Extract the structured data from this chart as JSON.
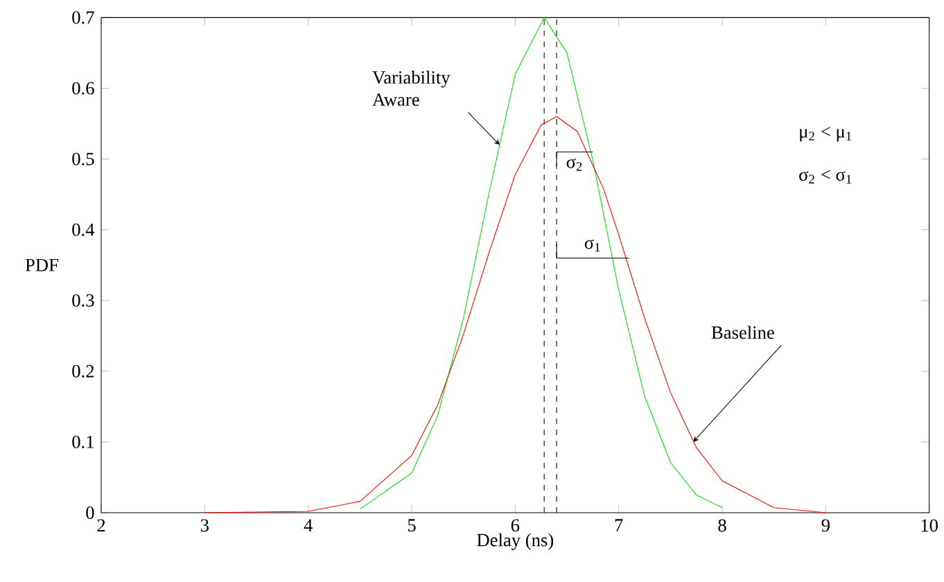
{
  "chart_data": {
    "type": "line",
    "xlabel": "Delay (ns)",
    "ylabel": "PDF",
    "xlim": [
      2,
      10
    ],
    "ylim": [
      0,
      0.7
    ],
    "xticks": [
      2,
      3,
      4,
      5,
      6,
      7,
      8,
      9,
      10
    ],
    "yticks": [
      0,
      0.1,
      0.2,
      0.3,
      0.4,
      0.5,
      0.6,
      0.7
    ],
    "grid": false,
    "marker": "none",
    "line_style": "solid",
    "series": [
      {
        "color": "#00e000",
        "x": [
          4.5,
          5,
          5.25,
          5.5,
          5.75,
          6,
          6.28,
          6.5,
          6.75,
          7,
          7.25,
          7.5,
          7.75,
          8
        ],
        "values": [
          0.005,
          0.056,
          0.137,
          0.275,
          0.454,
          0.62,
          0.7,
          0.65,
          0.498,
          0.315,
          0.165,
          0.071,
          0.025,
          0.007
        ]
      },
      {
        "color": "#ff0000",
        "x": [
          3,
          4,
          4.5,
          5,
          5.25,
          5.5,
          5.75,
          6,
          6.25,
          6.4,
          6.6,
          6.85,
          7,
          7.25,
          7.5,
          7.75,
          8,
          8.5,
          9
        ],
        "values": [
          0,
          0.002,
          0.016,
          0.081,
          0.152,
          0.252,
          0.369,
          0.478,
          0.548,
          0.56,
          0.539,
          0.459,
          0.393,
          0.275,
          0.17,
          0.092,
          0.045,
          0.007,
          0
        ]
      }
    ],
    "ref_lines": [
      {
        "axis": "x",
        "value": 6.28,
        "line_style": "dashed",
        "color": "#000000"
      },
      {
        "axis": "x",
        "value": 6.4,
        "line_style": "dashed",
        "color": "#000000"
      }
    ],
    "annotations": [
      {
        "text": "Variability Aware",
        "x": 5.85,
        "y": 0.52
      },
      {
        "text": "Baseline",
        "x": 7.72,
        "y": 0.1
      },
      {
        "text": "σ$_{2}$",
        "x": 6.75,
        "y": 0.51
      },
      {
        "text": "σ$_{1}$",
        "x": 7.1,
        "y": 0.36
      },
      "μ$_{2}$ < μ$_{1}$",
      "σ$_{2}$ < σ$_{1}$"
    ]
  }
}
